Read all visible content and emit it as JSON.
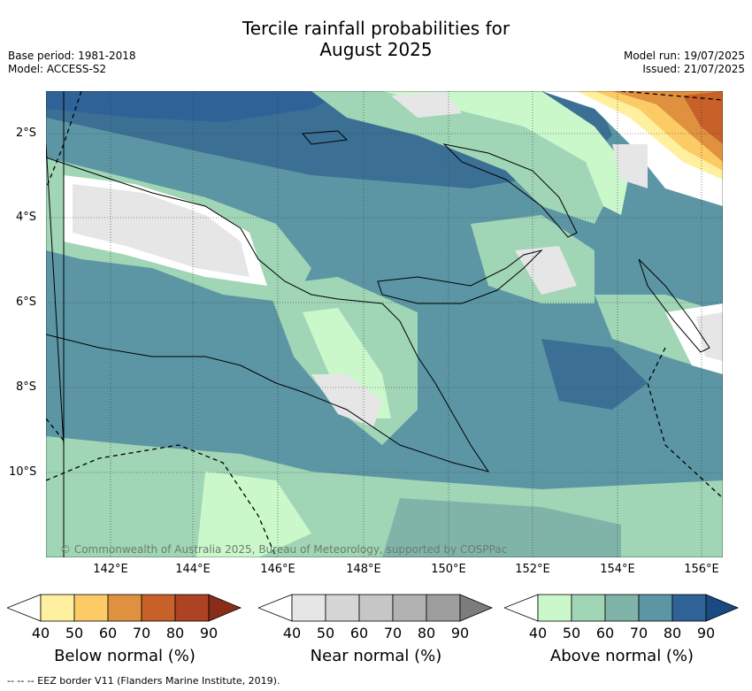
{
  "title_line1": "Tercile rainfall probabilities for",
  "title_line2": "August 2025",
  "base_period": "Base period: 1981-2018",
  "model": "Model: ACCESS-S2",
  "model_run": "Model run: 19/07/2025",
  "issued": "Issued: 21/07/2025",
  "lat_labels": [
    "2°S",
    "4°S",
    "6°S",
    "8°S",
    "10°S"
  ],
  "lon_labels": [
    "142°E",
    "144°E",
    "146°E",
    "148°E",
    "150°E",
    "152°E",
    "154°E",
    "156°E"
  ],
  "copyright": "© Commonwealth of Australia 2025, Bureau of Meteorology, supported by COSPPac",
  "colorbars": [
    {
      "label": "Below normal (%)",
      "ticks": [
        "40",
        "50",
        "60",
        "70",
        "80",
        "90"
      ],
      "colors": [
        "#fff0a0",
        "#fdcb65",
        "#e0913f",
        "#c8602a",
        "#ad4322",
        "#8a2d18"
      ]
    },
    {
      "label": "Near normal (%)",
      "ticks": [
        "40",
        "50",
        "60",
        "70",
        "80",
        "90"
      ],
      "colors": [
        "#e6e6e6",
        "#d6d6d6",
        "#c6c6c6",
        "#b2b2b2",
        "#9e9e9e",
        "#7c7c7c"
      ]
    },
    {
      "label": "Above normal (%)",
      "ticks": [
        "40",
        "50",
        "60",
        "70",
        "80",
        "90"
      ],
      "colors": [
        "#cbf8cb",
        "#a0d5b6",
        "#80b4a8",
        "#5c96a4",
        "#2f6398",
        "#1a4a82"
      ]
    }
  ],
  "eez_note": "-- -- -- EEZ border V11 (Flanders Marine Institute, 2019)."
}
